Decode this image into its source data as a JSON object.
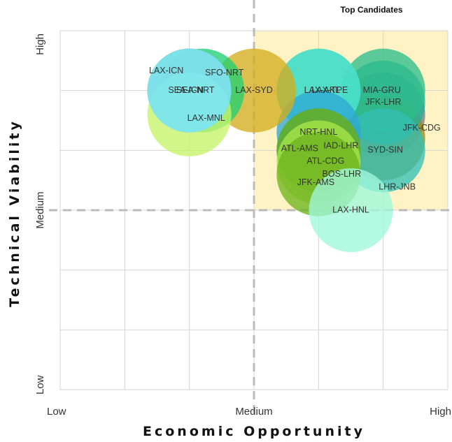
{
  "chart_data": {
    "type": "scatter",
    "title": "",
    "quadrant_label": "Top Candidates",
    "xlabel": "Economic Opportunity",
    "ylabel": "Technical Viability",
    "xlim": [
      0,
      6
    ],
    "ylim": [
      0,
      6
    ],
    "x_ticks": [
      {
        "value": 0,
        "label": "Low"
      },
      {
        "value": 3,
        "label": "Medium"
      },
      {
        "value": 6,
        "label": "High"
      }
    ],
    "y_ticks": [
      {
        "value": 0,
        "label": "Low"
      },
      {
        "value": 3,
        "label": "Medium"
      },
      {
        "value": 6,
        "label": "High"
      }
    ],
    "grid": true,
    "highlight_region": {
      "x": [
        3,
        6
      ],
      "y": [
        3,
        6
      ],
      "color": "#fff3c6"
    },
    "reference_lines": {
      "x": 3,
      "y": 3
    },
    "points": [
      {
        "label": "JFK-CDG",
        "x": 5.0,
        "y": 4.6,
        "size": 1.0,
        "color": "#7d7d7d"
      },
      {
        "label": "LHR-JNB",
        "x": 5.0,
        "y": 4.2,
        "size": 1.0,
        "color": "#9c8a1c"
      },
      {
        "label": "JFK-LHR",
        "x": 5.0,
        "y": 4.8,
        "size": 1.0,
        "color": "#22b19c"
      },
      {
        "label": "MIA-GRU",
        "x": 5.0,
        "y": 5.0,
        "size": 1.0,
        "color": "#2ebd8a"
      },
      {
        "label": "SYD-SIN",
        "x": 5.0,
        "y": 4.0,
        "size": 1.0,
        "color": "#33c0b5"
      },
      {
        "label": "LAX-TPE",
        "x": 4.0,
        "y": 5.0,
        "size": 1.0,
        "color": "#e7d34a"
      },
      {
        "label": "LAX-AKL",
        "x": 4.0,
        "y": 5.0,
        "size": 1.0,
        "color": "#25e0e6"
      },
      {
        "label": "NRT-HNL",
        "x": 4.0,
        "y": 4.3,
        "size": 1.0,
        "color": "#2fa8d5"
      },
      {
        "label": "ATL-AMS",
        "x": 4.0,
        "y": 4.0,
        "size": 1.0,
        "color": "#7a7a7a"
      },
      {
        "label": "IAD-LHR",
        "x": 4.0,
        "y": 4.0,
        "size": 1.0,
        "color": "#5c8d3a"
      },
      {
        "label": "ATL-CDG",
        "x": 4.0,
        "y": 4.0,
        "size": 1.0,
        "color": "#5fb832"
      },
      {
        "label": "BOS-LHR",
        "x": 4.0,
        "y": 3.8,
        "size": 1.0,
        "color": "#a8e54a"
      },
      {
        "label": "JFK-AMS",
        "x": 4.0,
        "y": 3.6,
        "size": 1.0,
        "color": "#6eb41e"
      },
      {
        "label": "LAX-HNL",
        "x": 4.5,
        "y": 3.0,
        "size": 1.0,
        "color": "#9ff7da"
      },
      {
        "label": "LAX-SYD",
        "x": 3.0,
        "y": 5.0,
        "size": 1.0,
        "color": "#d4ad1e"
      },
      {
        "label": "SEA-NRT",
        "x": 2.2,
        "y": 5.0,
        "size": 1.0,
        "color": "#20cf72"
      },
      {
        "label": "SFO-NRT",
        "x": 2.0,
        "y": 5.0,
        "size": 1.0,
        "color": "#2b2b2b"
      },
      {
        "label": "LAX-MNL",
        "x": 2.0,
        "y": 4.6,
        "size": 1.0,
        "color": "#c6f46a"
      },
      {
        "label": "SEA-ICN",
        "x": 2.0,
        "y": 5.0,
        "size": 1.0,
        "color": "#3ee0d8"
      },
      {
        "label": "LAX-ICN",
        "x": 2.0,
        "y": 5.0,
        "size": 1.0,
        "color": "#8ee8f5"
      }
    ]
  }
}
